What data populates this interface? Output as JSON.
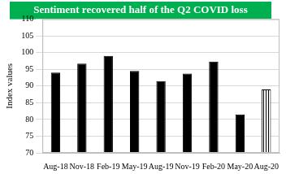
{
  "chart_data": {
    "type": "bar",
    "title": "Sentiment recovered half of the Q2 COVID loss",
    "y_label": "Index values",
    "categories": [
      "Aug-18",
      "Nov-18",
      "Feb-19",
      "May-19",
      "Aug-19",
      "Nov-19",
      "Feb-20",
      "May-20",
      "Aug-20"
    ],
    "values": [
      94,
      96.7,
      99,
      94.5,
      91.5,
      93.7,
      97.3,
      81.5,
      89
    ],
    "colors": [
      "#000000",
      "#000000",
      "#000000",
      "#000000",
      "#000000",
      "#000000",
      "#000000",
      "#000000",
      "#000000"
    ],
    "ylim": [
      70,
      110
    ],
    "yticks": [
      70,
      75,
      80,
      85,
      90,
      95,
      100,
      105,
      110
    ],
    "grid": true
  }
}
